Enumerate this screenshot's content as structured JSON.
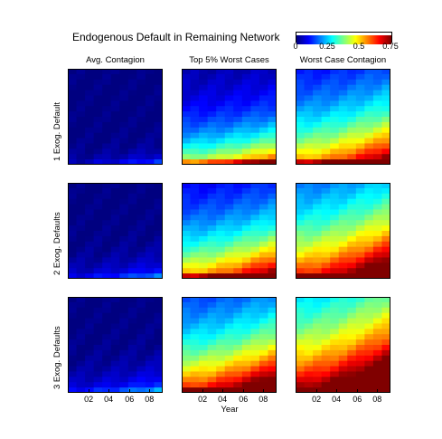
{
  "chart_data": {
    "type": "heatmap",
    "title": "Endogenous Default in Remaining Network",
    "xlabel": "Year",
    "x_tick_labels": [
      "02",
      "04",
      "06",
      "08"
    ],
    "column_titles": [
      "Avg. Contagion",
      "Top 5% Worst Cases",
      "Worst Case Contagion"
    ],
    "row_labels": [
      "1 Exog. Default",
      "2 Exog. Defaults",
      "3 Exog. Defaults"
    ],
    "colorbar": {
      "ticks": [
        "0",
        "0.25",
        "0.5",
        "0.75"
      ],
      "range": [
        0,
        0.75
      ],
      "colormap": "jet"
    },
    "panel_params": [
      [
        {
          "base": 0.02,
          "growth": 0.05,
          "decay": 2.0
        },
        {
          "base": 0.3,
          "growth": 0.15,
          "decay": 7.0
        },
        {
          "base": 0.38,
          "growth": 0.18,
          "decay": 11.0
        }
      ],
      [
        {
          "base": 0.04,
          "growth": 0.06,
          "decay": 3.0
        },
        {
          "base": 0.38,
          "growth": 0.18,
          "decay": 10.0
        },
        {
          "base": 0.45,
          "growth": 0.2,
          "decay": 14.0
        }
      ],
      [
        {
          "base": 0.05,
          "growth": 0.07,
          "decay": 3.5
        },
        {
          "base": 0.45,
          "growth": 0.2,
          "decay": 12.0
        },
        {
          "base": 0.52,
          "growth": 0.22,
          "decay": 17.0
        }
      ]
    ]
  },
  "colors": {
    "frame": "#000000",
    "background": "#ffffff"
  }
}
